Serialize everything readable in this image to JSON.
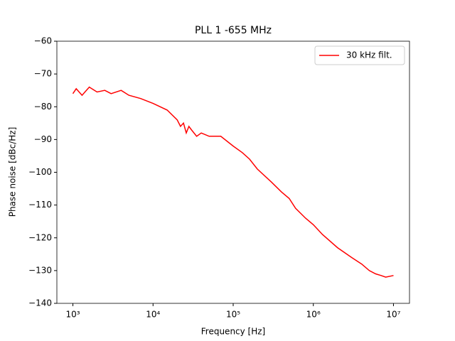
{
  "chart_data": {
    "type": "line",
    "title": "PLL 1 -655 MHz",
    "x_label": "Frequency [Hz]",
    "y_label": "Phase noise [dBc/Hz]",
    "x_scale": "log",
    "legend": "upper right",
    "xlim": [
      631,
      15850000
    ],
    "xticks": [
      {
        "value": 1000,
        "label": "10³"
      },
      {
        "value": 10000,
        "label": "10⁴"
      },
      {
        "value": 100000,
        "label": "10⁵"
      },
      {
        "value": 1000000,
        "label": "10⁶"
      },
      {
        "value": 10000000,
        "label": "10⁷"
      }
    ],
    "ylim": [
      -140,
      -60
    ],
    "yticks": [
      {
        "value": -140,
        "label": "−140"
      },
      {
        "value": -130,
        "label": "−130"
      },
      {
        "value": -120,
        "label": "−120"
      },
      {
        "value": -110,
        "label": "−110"
      },
      {
        "value": -100,
        "label": "−100"
      },
      {
        "value": -90,
        "label": "−90"
      },
      {
        "value": -80,
        "label": "−80"
      },
      {
        "value": -70,
        "label": "−70"
      },
      {
        "value": -60,
        "label": "−60"
      }
    ],
    "x": [
      1000,
      1100,
      1300,
      1600,
      2000,
      2500,
      3000,
      4000,
      5000,
      7000,
      10000,
      15000,
      20000,
      22000,
      24000,
      26000,
      28000,
      30000,
      35000,
      40000,
      50000,
      70000,
      100000,
      130000,
      160000,
      200000,
      300000,
      400000,
      500000,
      600000,
      800000,
      1000000,
      1300000,
      2000000,
      3000000,
      4000000,
      5000000,
      6000000,
      7000000,
      8000000,
      10000000
    ],
    "series": [
      {
        "name": "30 kHz filt.",
        "color": "#ff0000",
        "values": [
          -76,
          -74.5,
          -76.5,
          -74,
          -75.5,
          -75,
          -76,
          -75,
          -76.5,
          -77.5,
          -79,
          -81,
          -84,
          -86,
          -85,
          -88,
          -86,
          -87,
          -89,
          -88,
          -89,
          -89,
          -92,
          -94,
          -96,
          -99,
          -103,
          -106,
          -108,
          -111,
          -114,
          -116,
          -119,
          -123,
          -126,
          -128,
          -130,
          -131,
          -131.5,
          -132,
          -131.5
        ]
      }
    ]
  }
}
